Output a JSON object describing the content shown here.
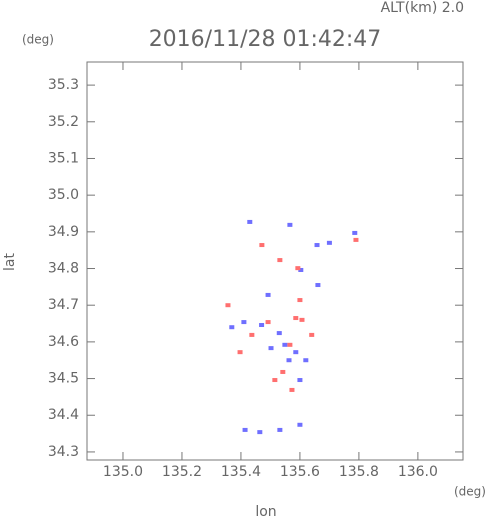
{
  "chart_data": {
    "type": "scatter",
    "title": "2016/11/28 01:42:47",
    "subtitle": "ALT(km) 2.0",
    "x_label": "lon",
    "y_label": "lat",
    "x_unit": "(deg)",
    "y_unit": "(deg)",
    "xlim": [
      134.878,
      136.153
    ],
    "ylim": [
      34.278,
      35.363
    ],
    "xticks": [
      {
        "value": 135,
        "label": "135.0"
      },
      135.2,
      135.4,
      135.6,
      135.8,
      {
        "value": 136,
        "label": "136.0"
      }
    ],
    "yticks": [
      34.3,
      34.4,
      34.5,
      34.6,
      34.7,
      34.8,
      34.9,
      {
        "value": 35,
        "label": "35.0"
      },
      35.1,
      35.2,
      35.3
    ],
    "series": [
      {
        "color": "#6f6fff",
        "x": [
          135.43,
          135.566,
          135.658,
          135.7,
          135.786,
          135.603,
          135.661,
          135.369,
          135.41,
          135.47,
          135.53,
          135.549,
          135.586,
          135.502,
          135.6,
          135.414,
          135.464,
          135.532,
          135.6,
          135.492,
          135.563,
          135.62
        ],
        "y": [
          34.927,
          34.919,
          34.864,
          34.87,
          34.897,
          34.796,
          34.755,
          34.64,
          34.654,
          34.646,
          34.624,
          34.592,
          34.572,
          34.583,
          34.496,
          34.36,
          34.354,
          34.36,
          34.374,
          34.728,
          34.55,
          34.55
        ]
      },
      {
        "color": "#ff6f6f",
        "x": [
          135.79,
          135.471,
          135.593,
          135.356,
          135.586,
          135.607,
          135.492,
          135.566,
          135.515,
          135.542,
          135.573,
          135.397,
          135.532,
          135.64,
          135.437,
          135.6
        ],
        "y": [
          34.878,
          34.864,
          34.801,
          34.7,
          34.665,
          34.66,
          34.654,
          34.592,
          34.496,
          34.518,
          34.469,
          34.572,
          34.823,
          34.619,
          34.619,
          34.714
        ]
      }
    ]
  }
}
